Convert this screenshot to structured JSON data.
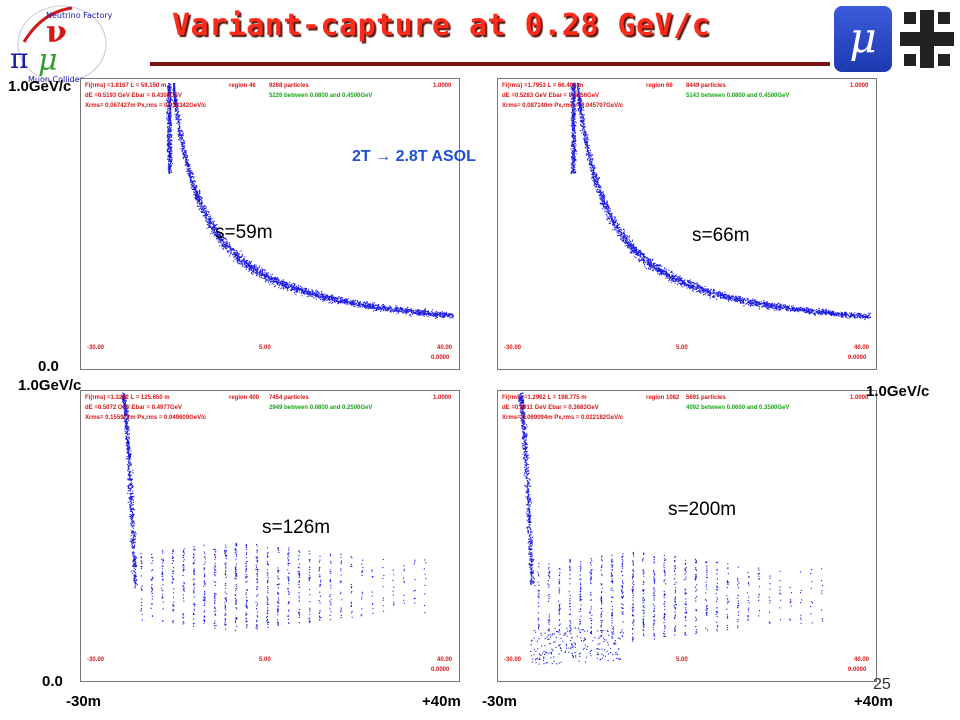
{
  "title": "Variant-capture at 0.28 GeV/c",
  "annotation": "2T → 2.8T ASOL",
  "page_number": "25",
  "axis_labels": {
    "top_left_y_max": "1.0GeV/c",
    "left_y_zero_top": "0.0",
    "left_y_max_bottom": "1.0GeV/c",
    "right_y_max_bottom": "1.0GeV/c",
    "left_y_zero_bottom": "0.0",
    "x_min_left": "-30m",
    "x_max_left": "+40m",
    "x_min_right": "-30m",
    "x_max_right": "+40m"
  },
  "logos": {
    "mu_symbol": "μ",
    "nf_text": "Neutrino Factory",
    "icons": [
      "neutrino-factory-logo",
      "muon-collaboration-logo",
      "fermilab-logo"
    ]
  },
  "panels": [
    {
      "s_label": "s=59m",
      "stats": [
        "Fi(rms) =1.8167   L =  59.150 m",
        "dE =0.5193 GeV   Ebar = 0.4303GeV",
        "Xrms= 0.067427m    Px,rms = 0.032342GeV/c"
      ],
      "region": "region  46",
      "particles": "9268 particles",
      "between": "5226 between 0.0800 and 0.4500GeV",
      "ymax": "1.0000",
      "ymin": "0.0000",
      "xmin": "-30.00",
      "xmid": "5.00",
      "xmax": "40.00",
      "pattern": "hyperbola",
      "colors": {
        "dots": "#1a1ae0"
      }
    },
    {
      "s_label": "s=66m",
      "stats": [
        "Fi(rms) =1.7953   L =  66.400 m",
        "dE =0.5283 GeV   Ebar = 0.4656GeV",
        "Xrms= 0.087140m    Px,rms = 0.045707GeV/c"
      ],
      "region": "region  66",
      "particles": "8449 particles",
      "between": "5143 between 0.0800 and 0.4500GeV",
      "ymax": "1.0000",
      "ymin": "0.0000",
      "xmin": "-30.00",
      "xmid": "5.00",
      "xmax": "40.00",
      "pattern": "hyperbola",
      "colors": {
        "dots": "#1a1ae0"
      }
    },
    {
      "s_label": "s=126m",
      "stats": [
        "Fi(rms) =1.3262   L = 125.650 m",
        "dE =0.5072 GeV   Ebar =  0.4977GeV",
        "Xrms= 0.155972m    Px,rms = 0.049609GeV/c"
      ],
      "region": "region 400",
      "particles": "7454 particles",
      "between": "2949 between 0.0800 and 0.2500GeV",
      "ymax": "1.0000",
      "ymin": "0.0000",
      "xmin": "-30.00",
      "xmid": "5.00",
      "xmax": "40.00",
      "pattern": "bunched",
      "colors": {
        "dots": "#1a1ae0"
      }
    },
    {
      "s_label": "s=200m",
      "stats": [
        "Fi(rms) =1.2962   L = 198.775 m",
        "dE =0.3911 GeV   Ebar =  0.3683GeV",
        "Xrms= 0.069094m    Px,rms = 0.022182GeV/c"
      ],
      "region": "region 1082",
      "particles": "5691 particles",
      "between": "4092 between 0.0600 and 0.3500GeV",
      "ymax": "1.0000",
      "ymin": "0.0000",
      "xmin": "-30.00",
      "xmid": "5.00",
      "xmax": "40.00",
      "pattern": "bunched2",
      "colors": {
        "dots": "#1a1ae0"
      }
    }
  ]
}
